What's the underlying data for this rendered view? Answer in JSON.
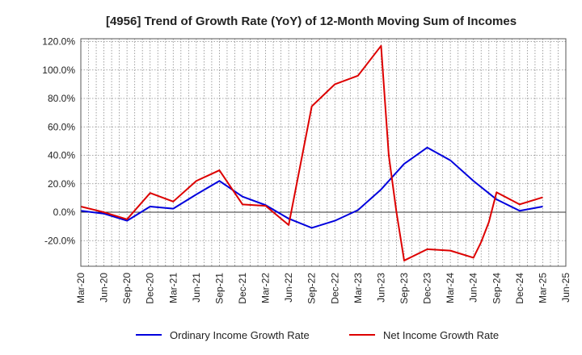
{
  "chart_data": {
    "type": "line",
    "title": "[4956]  Trend of Growth Rate (YoY) of 12-Month Moving Sum of Incomes",
    "xlabel": "",
    "ylabel": "",
    "x_tick_labels": [
      "Mar-20",
      "Jun-20",
      "Sep-20",
      "Dec-20",
      "Mar-21",
      "Jun-21",
      "Sep-21",
      "Dec-21",
      "Mar-22",
      "Jun-22",
      "Sep-22",
      "Dec-22",
      "Mar-23",
      "Jun-23",
      "Sep-23",
      "Dec-23",
      "Mar-24",
      "Jun-24",
      "Sep-24",
      "Dec-24",
      "Mar-25",
      "Jun-25"
    ],
    "y_tick_labels": [
      "120.0%",
      "100.0%",
      "80.0%",
      "60.0%",
      "40.0%",
      "20.0%",
      "0.0%",
      "-20.0%"
    ],
    "y_ticks": [
      120,
      100,
      80,
      60,
      40,
      20,
      0,
      -20
    ],
    "ylim": [
      -38,
      122
    ],
    "grid": true,
    "legend_position": "bottom",
    "series": [
      {
        "name": "Ordinary Income Growth Rate",
        "color": "#0000dd",
        "points": [
          [
            "Mar-20",
            1.0
          ],
          [
            "Jun-20",
            -1.0
          ],
          [
            "Sep-20",
            -6.0
          ],
          [
            "Dec-20",
            4.0
          ],
          [
            "Mar-21",
            2.5
          ],
          [
            "Jun-21",
            12.5
          ],
          [
            "Sep-21",
            22.0
          ],
          [
            "Dec-21",
            11.0
          ],
          [
            "Mar-22",
            5.0
          ],
          [
            "Jun-22",
            -4.5
          ],
          [
            "Sep-22",
            -11.0
          ],
          [
            "Dec-22",
            -6.0
          ],
          [
            "Mar-23",
            1.5
          ],
          [
            "Jun-23",
            16.0
          ],
          [
            "Sep-23",
            34.0
          ],
          [
            "Dec-23",
            45.5
          ],
          [
            "Mar-24",
            36.5
          ],
          [
            "Jun-24",
            22.0
          ],
          [
            "Sep-24",
            9.0
          ],
          [
            "Dec-24",
            1.0
          ],
          [
            "Mar-25",
            4.0
          ]
        ]
      },
      {
        "name": "Net Income Growth Rate",
        "color": "#dd0000",
        "points": [
          [
            "Mar-20",
            4.0
          ],
          [
            "Jun-20",
            0.0
          ],
          [
            "Sep-20",
            -5.0
          ],
          [
            "Dec-20",
            13.5
          ],
          [
            "Mar-21",
            7.5
          ],
          [
            "Jun-21",
            22.0
          ],
          [
            "Sep-21",
            29.5
          ],
          [
            "Dec-21",
            5.5
          ],
          [
            "Mar-22",
            4.5
          ],
          [
            "Jun-22",
            -9.0
          ],
          [
            "Sep-22",
            74.5
          ],
          [
            "Dec-22",
            90.0
          ],
          [
            "Mar-23",
            96.0
          ],
          [
            "Jun-23",
            117.0
          ],
          [
            "Jul-23",
            40.0
          ],
          [
            "Aug-23",
            0.0
          ],
          [
            "Sep-23",
            -34.0
          ],
          [
            "Dec-23",
            -26.0
          ],
          [
            "Mar-24",
            -27.0
          ],
          [
            "Jun-24",
            -32.0
          ],
          [
            "Jul-24",
            -21.0
          ],
          [
            "Aug-24",
            -7.0
          ],
          [
            "Sep-24",
            14.0
          ],
          [
            "Dec-24",
            5.5
          ],
          [
            "Mar-25",
            10.5
          ]
        ]
      }
    ]
  }
}
